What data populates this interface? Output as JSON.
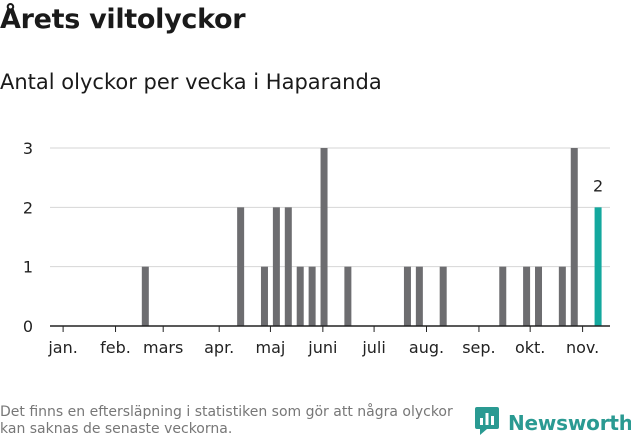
{
  "title": "Årets viltolyckor",
  "subtitle": "Antal olyckor per vecka i Haparanda",
  "footnote": "Det finns en eftersläpning i statistiken som gör att några olyckor kan saknas de senaste veckorna.",
  "brand": {
    "name": "Newsworthy",
    "icon": "newsworthy-chat-chart-icon",
    "color": "#2a9a92"
  },
  "colors": {
    "bar": "#6d6d70",
    "highlight": "#13a89e",
    "grid": "#d6d6d6",
    "axis": "#222222"
  },
  "chart_data": {
    "type": "bar",
    "title": "Årets viltolyckor",
    "subtitle": "Antal olyckor per vecka i Haparanda",
    "x": [
      1,
      2,
      3,
      4,
      5,
      6,
      7,
      8,
      9,
      10,
      11,
      12,
      13,
      14,
      15,
      16,
      17,
      18,
      19,
      20,
      21,
      22,
      23,
      24,
      25,
      26,
      27,
      28,
      29,
      30,
      31,
      32,
      33,
      34,
      35,
      36,
      37,
      38,
      39,
      40,
      41,
      42,
      43,
      44,
      45,
      46
    ],
    "values": [
      0,
      0,
      0,
      0,
      0,
      0,
      0,
      1,
      0,
      0,
      0,
      0,
      0,
      0,
      0,
      2,
      0,
      1,
      2,
      2,
      1,
      1,
      3,
      0,
      1,
      0,
      0,
      0,
      0,
      1,
      1,
      0,
      1,
      0,
      0,
      0,
      0,
      1,
      0,
      1,
      1,
      0,
      1,
      3,
      0,
      2
    ],
    "highlight_index": 45,
    "highlight_label": "2",
    "ylim": [
      0,
      3
    ],
    "yticks": [
      0,
      1,
      2,
      3
    ],
    "xlim": [
      0,
      47
    ],
    "month_ticks": [
      {
        "label": "jan.",
        "x": 1.1
      },
      {
        "label": "feb.",
        "x": 5.5
      },
      {
        "label": "mars",
        "x": 9.5
      },
      {
        "label": "apr.",
        "x": 14.2
      },
      {
        "label": "maj",
        "x": 18.5
      },
      {
        "label": "juni",
        "x": 22.9
      },
      {
        "label": "juli",
        "x": 27.2
      },
      {
        "label": "aug.",
        "x": 31.6
      },
      {
        "label": "sep.",
        "x": 36.0
      },
      {
        "label": "okt.",
        "x": 40.3
      },
      {
        "label": "nov.",
        "x": 44.7
      }
    ],
    "grid": true,
    "legend": "none"
  }
}
